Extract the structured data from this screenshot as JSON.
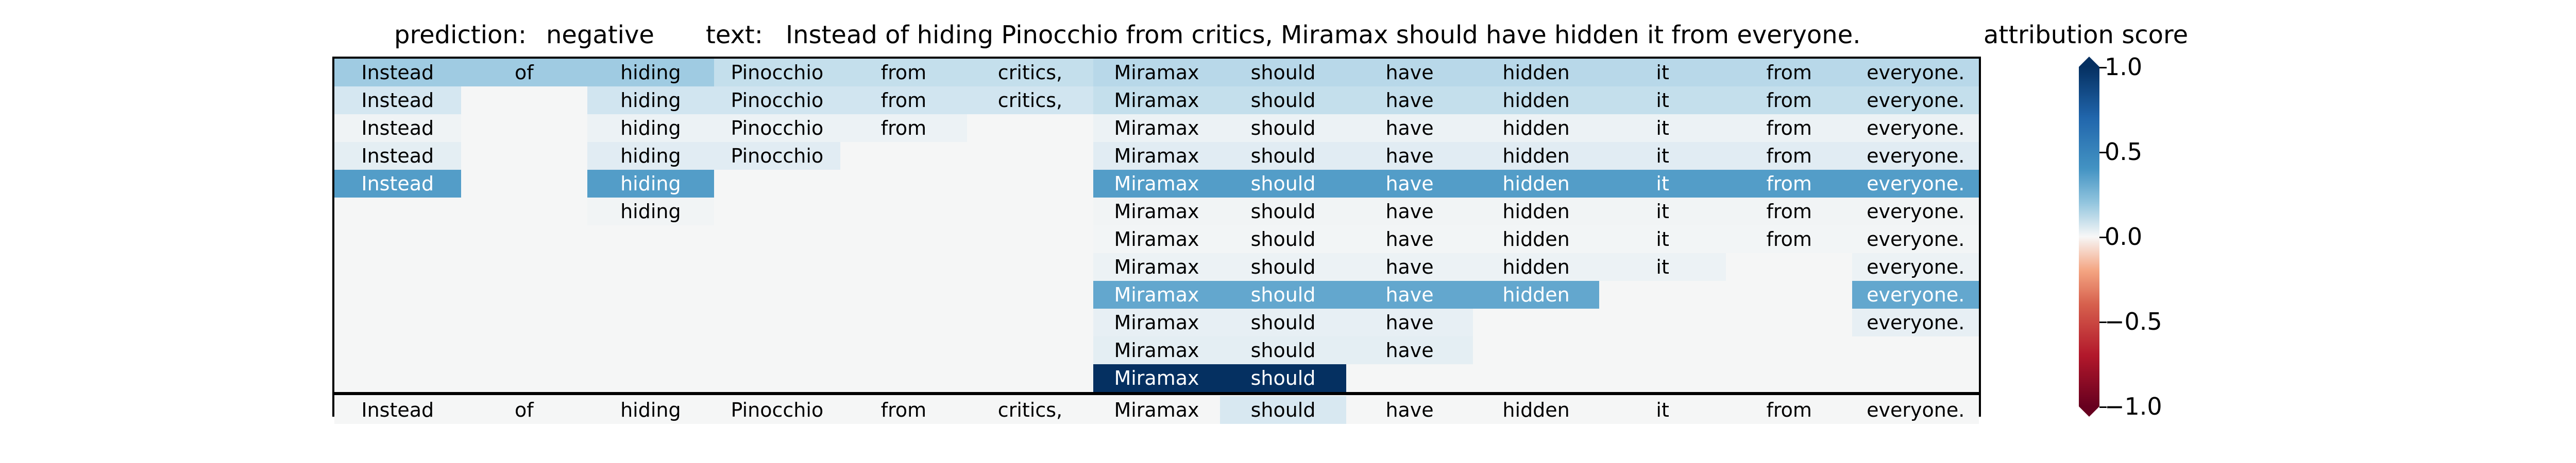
{
  "header": {
    "prediction_label": "prediction:",
    "prediction_value": "negative",
    "text_label": "text:",
    "text_value": "Instead of hiding Pinocchio from critics, Miramax should have hidden it from everyone.",
    "colorbar_title": "attribution score"
  },
  "chart_data": {
    "type": "heatmap",
    "columns": [
      "Instead",
      "of",
      "hiding",
      "Pinocchio",
      "from",
      "critics,",
      "Miramax",
      "should",
      "have",
      "hidden",
      "it",
      "from",
      "everyone."
    ],
    "rows": [
      [
        0.45,
        0.45,
        0.45,
        0.3,
        0.3,
        0.3,
        0.35,
        0.35,
        0.35,
        0.35,
        0.35,
        0.35,
        0.35
      ],
      [
        0.22,
        null,
        0.25,
        0.25,
        0.25,
        0.25,
        0.3,
        0.3,
        0.3,
        0.3,
        0.3,
        0.3,
        0.3
      ],
      [
        0.04,
        null,
        0.06,
        0.06,
        0.06,
        null,
        0.06,
        0.06,
        0.06,
        0.06,
        0.06,
        0.06,
        0.06
      ],
      [
        0.12,
        null,
        0.14,
        0.14,
        null,
        null,
        0.14,
        0.14,
        0.14,
        0.14,
        0.14,
        0.14,
        0.14
      ],
      [
        0.7,
        null,
        0.7,
        null,
        null,
        null,
        0.7,
        0.7,
        0.7,
        0.7,
        0.7,
        0.7,
        0.7
      ],
      [
        null,
        null,
        0.03,
        null,
        null,
        null,
        0.03,
        0.03,
        0.03,
        0.03,
        0.03,
        0.03,
        0.03
      ],
      [
        null,
        null,
        null,
        null,
        null,
        null,
        0.02,
        0.02,
        0.02,
        0.02,
        0.02,
        0.02,
        0.02
      ],
      [
        null,
        null,
        null,
        null,
        null,
        null,
        0.06,
        0.06,
        0.06,
        0.06,
        0.06,
        null,
        0.06
      ],
      [
        null,
        null,
        null,
        null,
        null,
        null,
        0.65,
        0.65,
        0.65,
        0.65,
        null,
        null,
        0.65
      ],
      [
        null,
        null,
        null,
        null,
        null,
        null,
        0.1,
        0.1,
        0.1,
        null,
        null,
        null,
        0.1
      ],
      [
        null,
        null,
        null,
        null,
        null,
        null,
        0.12,
        0.12,
        0.12,
        null,
        null,
        null,
        null
      ],
      [
        null,
        null,
        null,
        null,
        null,
        null,
        1.0,
        1.0,
        null,
        null,
        null,
        null,
        null
      ]
    ],
    "final_row": [
      0.0,
      0.0,
      0.0,
      0.0,
      0.0,
      0.0,
      0.0,
      0.2,
      0.0,
      0.0,
      0.0,
      0.0,
      0.0
    ],
    "colorbar": {
      "min": -1.0,
      "max": 1.0,
      "ticks": [
        "1.0",
        "0.5",
        "0.0",
        "−0.5",
        "−1.0"
      ],
      "colormap": "RdBu"
    }
  }
}
